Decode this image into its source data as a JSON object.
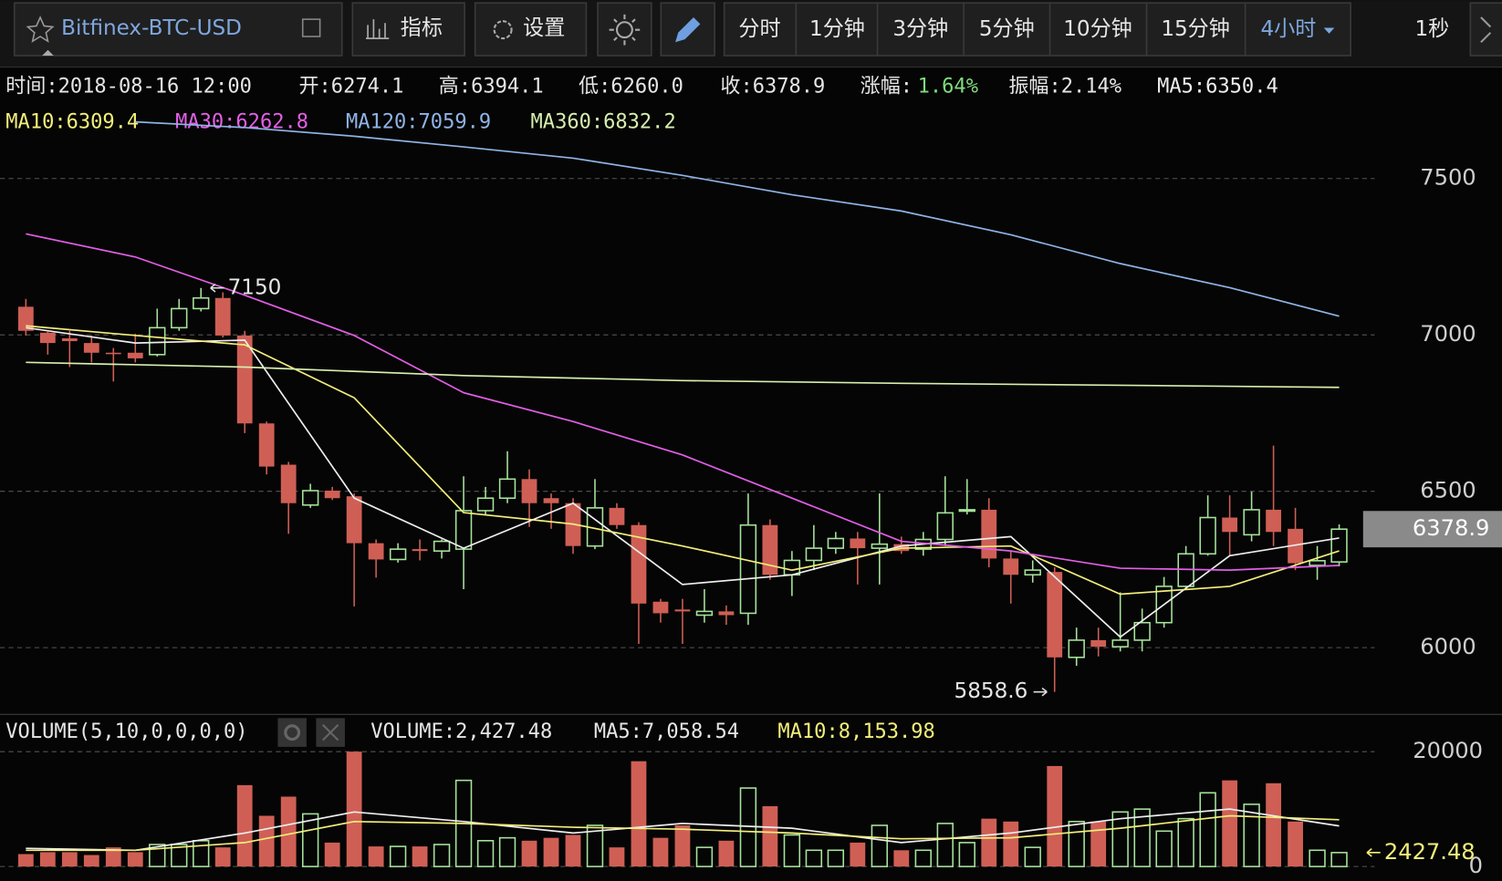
{
  "toolbar": {
    "symbol": "Bitfinex-BTC-USD",
    "buttons": [
      "指标",
      "设置"
    ],
    "periods": [
      "分时",
      "1分钟",
      "3分钟",
      "5分钟",
      "10分钟",
      "15分钟",
      "4小时"
    ],
    "extra": "1秒"
  },
  "info": [
    "时间:2018-08-16 12:00",
    "开:6274.1",
    "高:6394.1",
    "低:6260.0",
    "收:6378.9",
    "涨幅:",
    "1.64%",
    "振幅:2.14%"
  ],
  "chart_data": {
    "type": "candlestick",
    "up_color": "#a6e39b",
    "down_color": "#cf5f55",
    "grid": true,
    "ylim": [
      5790,
      7700
    ],
    "yticks": [
      6000,
      6500,
      7000,
      7500
    ],
    "open": [
      7090,
      7007,
      6989,
      6974,
      6943,
      6943,
      6937,
      7023,
      7084,
      7118,
      6998,
      6717,
      6585,
      6456,
      6502,
      6484,
      6334,
      6282,
      6315,
      6309,
      6315,
      6438,
      6478,
      6539,
      6478,
      6462,
      6325,
      6447,
      6392,
      6147,
      6122,
      6104,
      6116,
      6110,
      6392,
      6233,
      6279,
      6318,
      6349,
      6318,
      6331,
      6315,
      6346,
      6438,
      6441,
      6285,
      6233,
      6242,
      5969,
      6024,
      6003,
      6024,
      6080,
      6196,
      6300,
      6416,
      6361,
      6441,
      6380,
      6263,
      6274.1
    ],
    "high": [
      7115,
      7010,
      7013,
      6998,
      6958,
      7004,
      7084,
      7115,
      7150,
      7136,
      7013,
      6723,
      6594,
      6524,
      6514,
      6493,
      6346,
      6334,
      6346,
      6346,
      6548,
      6514,
      6628,
      6570,
      6493,
      6478,
      6539,
      6462,
      6401,
      6156,
      6156,
      6187,
      6135,
      6493,
      6410,
      6309,
      6392,
      6370,
      6370,
      6493,
      6355,
      6370,
      6548,
      6539,
      6478,
      6309,
      6279,
      6257,
      6064,
      6064,
      6177,
      6125,
      6226,
      6325,
      6487,
      6487,
      6499,
      6646,
      6447,
      6325,
      6394.1
    ],
    "low": [
      6998,
      6937,
      6897,
      6912,
      6851,
      6912,
      6931,
      7013,
      7075,
      6992,
      6686,
      6554,
      6364,
      6447,
      6472,
      6132,
      6224,
      6272,
      6279,
      6285,
      6187,
      6426,
      6462,
      6386,
      6380,
      6300,
      6315,
      6380,
      6012,
      6080,
      6012,
      6080,
      6073,
      6073,
      6217,
      6165,
      6248,
      6300,
      6202,
      6202,
      6300,
      6294,
      6325,
      6426,
      6257,
      6141,
      6208,
      5858.6,
      5942,
      5972,
      5988,
      5988,
      6064,
      6187,
      6294,
      6294,
      6340,
      6325,
      6248,
      6217,
      6260.0
    ],
    "close": [
      7013,
      6974,
      6980,
      6943,
      6940,
      6925,
      7023,
      7084,
      7118,
      6998,
      6717,
      6579,
      6462,
      6502,
      6478,
      6334,
      6282,
      6315,
      6309,
      6340,
      6438,
      6478,
      6539,
      6462,
      6462,
      6325,
      6447,
      6392,
      6141,
      6110,
      6116,
      6116,
      6104,
      6392,
      6233,
      6279,
      6318,
      6349,
      6318,
      6331,
      6309,
      6346,
      6431,
      6441,
      6285,
      6233,
      6248,
      5969,
      6024,
      6003,
      6024,
      6080,
      6196,
      6300,
      6416,
      6370,
      6441,
      6370,
      6270,
      6278,
      6378.9
    ],
    "volume": [
      2167,
      2500,
      2500,
      2000,
      3333,
      2500,
      3833,
      3833,
      4500,
      3333,
      14167,
      8833,
      12167,
      9167,
      4167,
      20000,
      3500,
      3500,
      3500,
      3833,
      15000,
      4500,
      5000,
      4500,
      5000,
      5500,
      7167,
      3333,
      18333,
      5000,
      7167,
      3333,
      4500,
      13667,
      10500,
      5500,
      2833,
      2833,
      4167,
      7167,
      2833,
      2833,
      7500,
      4167,
      8333,
      7833,
      3333,
      17500,
      7833,
      7833,
      9500,
      10000,
      6167,
      8333,
      12833,
      15000,
      10833,
      14500,
      7833,
      2833,
      2427.48
    ],
    "volume_ylim": [
      0,
      20000
    ],
    "volume_yticks": [
      0,
      20000
    ],
    "max_label": 7150,
    "min_label": 5858.6,
    "ma_lines": [
      {
        "legend": "MA5:6350.4",
        "color": "#eeeeee",
        "x": [
          0,
          5,
          10,
          15,
          20,
          25,
          30,
          35,
          40,
          45,
          50,
          55,
          60
        ],
        "values": [
          7023,
          6974,
          6983,
          6478,
          6318,
          6462,
          6202,
          6233,
          6325,
          6355,
          6034,
          6294,
          6350.4
        ]
      },
      {
        "legend": "MA10:6309.4",
        "color": "#f3ee7a",
        "x": [
          0,
          5,
          10,
          15,
          20,
          25,
          30,
          35,
          40,
          45,
          50,
          55,
          60
        ],
        "values": [
          7029,
          6998,
          6968,
          6799,
          6432,
          6395,
          6325,
          6248,
          6318,
          6325,
          6171,
          6196,
          6309.4
        ]
      },
      {
        "legend": "MA30:6262.8",
        "color": "#e35fe6",
        "x": [
          0,
          5,
          10,
          15,
          20,
          25,
          30,
          35,
          40,
          45,
          50,
          55,
          60
        ],
        "values": [
          7323,
          7249,
          7127,
          6998,
          6815,
          6723,
          6616,
          6478,
          6340,
          6309,
          6254,
          6248,
          6262.8
        ]
      },
      {
        "legend": "MA120:7059.9",
        "color": "#8fb4e6",
        "x": [
          5,
          10,
          15,
          20,
          25,
          30,
          35,
          40,
          45,
          50,
          55,
          60
        ],
        "values": [
          7681,
          7663,
          7635,
          7601,
          7565,
          7510,
          7448,
          7396,
          7320,
          7228,
          7151,
          7059.9
        ]
      },
      {
        "legend": "MA360:6832.2",
        "color": "#d6efad",
        "x": [
          0,
          10,
          20,
          30,
          40,
          50,
          60
        ],
        "values": [
          6912,
          6897,
          6870,
          6854,
          6845,
          6839,
          6832.2
        ]
      }
    ],
    "volume_title": "VOLUME(5,10,0,0,0,0)",
    "volume_legend": "VOLUME:2,427.48",
    "volume_ma_lines": [
      {
        "legend": "MA5:7,058.54",
        "color": "#eeeeee",
        "x": [
          0,
          5,
          10,
          15,
          20,
          25,
          30,
          35,
          40,
          45,
          50,
          55,
          60
        ],
        "values": [
          3167,
          2833,
          5833,
          9500,
          7833,
          5833,
          7500,
          6667,
          4167,
          5833,
          8333,
          10000,
          7058.54
        ]
      },
      {
        "legend": "MA10:8,153.98",
        "color": "#f3ee7a",
        "x": [
          0,
          5,
          10,
          15,
          20,
          25,
          30,
          35,
          40,
          45,
          50,
          55,
          60
        ],
        "values": [
          2833,
          2833,
          4167,
          7833,
          7500,
          6833,
          6500,
          5833,
          4833,
          5000,
          6667,
          8833,
          8153.98
        ]
      }
    ]
  }
}
